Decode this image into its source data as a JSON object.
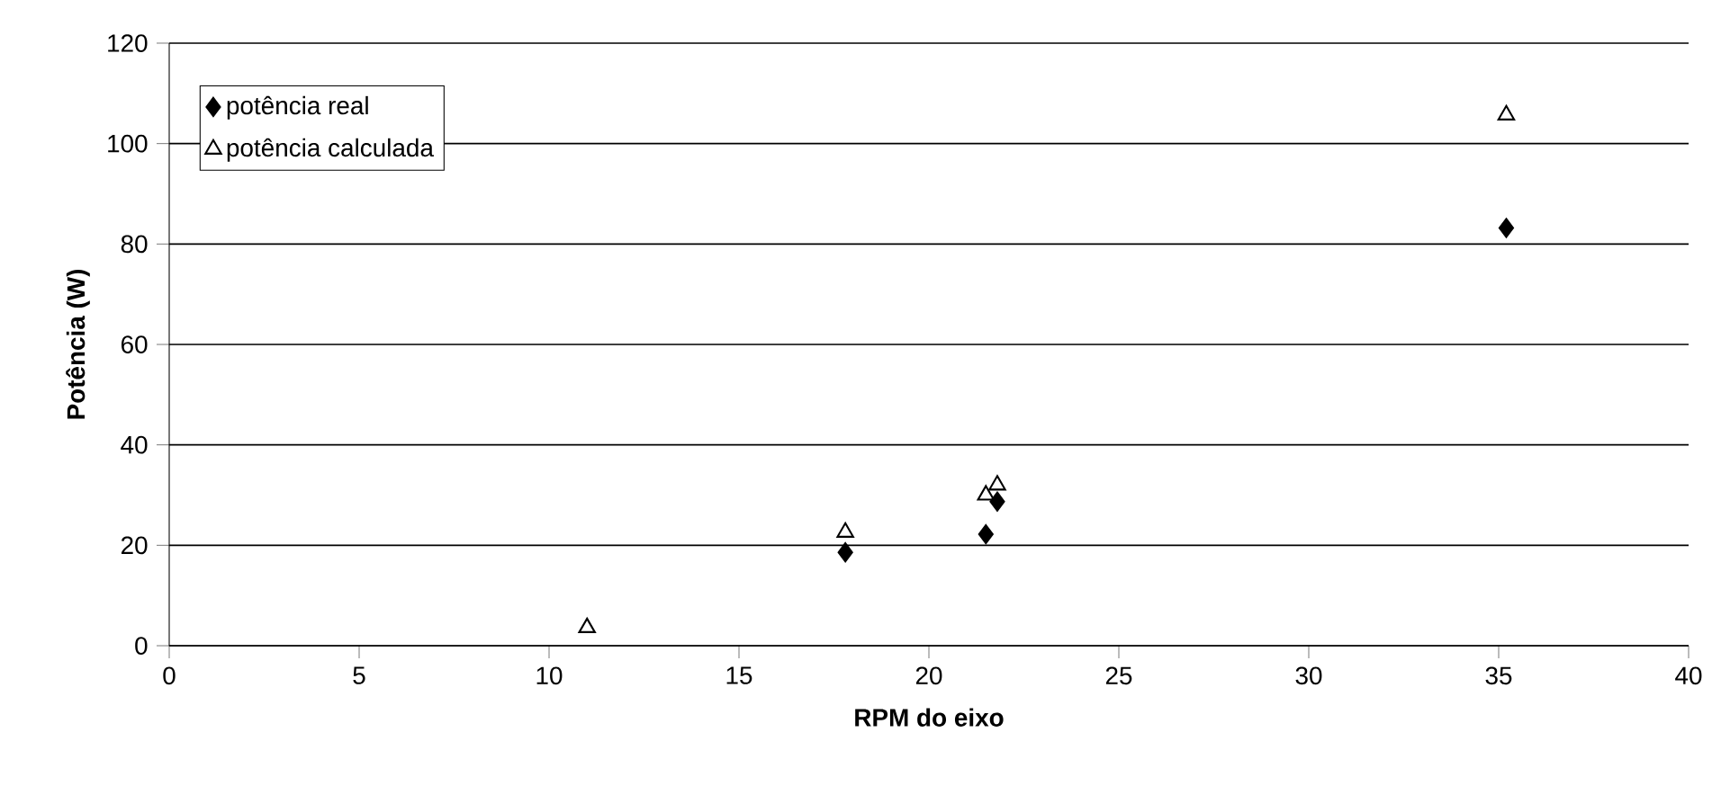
{
  "chart_data": {
    "type": "scatter",
    "xlabel": "RPM do eixo",
    "ylabel": "Potência (W)",
    "xlim": [
      0,
      40
    ],
    "ylim": [
      0,
      120
    ],
    "xticks": [
      0,
      5,
      10,
      15,
      20,
      25,
      30,
      35,
      40
    ],
    "yticks": [
      0,
      20,
      40,
      60,
      80,
      100,
      120
    ],
    "grid": "y",
    "legend": "top left",
    "series": [
      {
        "name": "potência real",
        "color": "#000000",
        "marker": "diamond",
        "x": [
          17.8,
          21.5,
          21.8,
          35.2
        ],
        "values": [
          18.6,
          22.2,
          28.7,
          83.2
        ]
      },
      {
        "name": "potência calculada",
        "color": "#000000",
        "marker": "triangle",
        "x": [
          11.0,
          17.8,
          21.5,
          21.8,
          35.2
        ],
        "values": [
          3.6,
          22.6,
          30.0,
          32.0,
          105.7
        ]
      }
    ]
  }
}
